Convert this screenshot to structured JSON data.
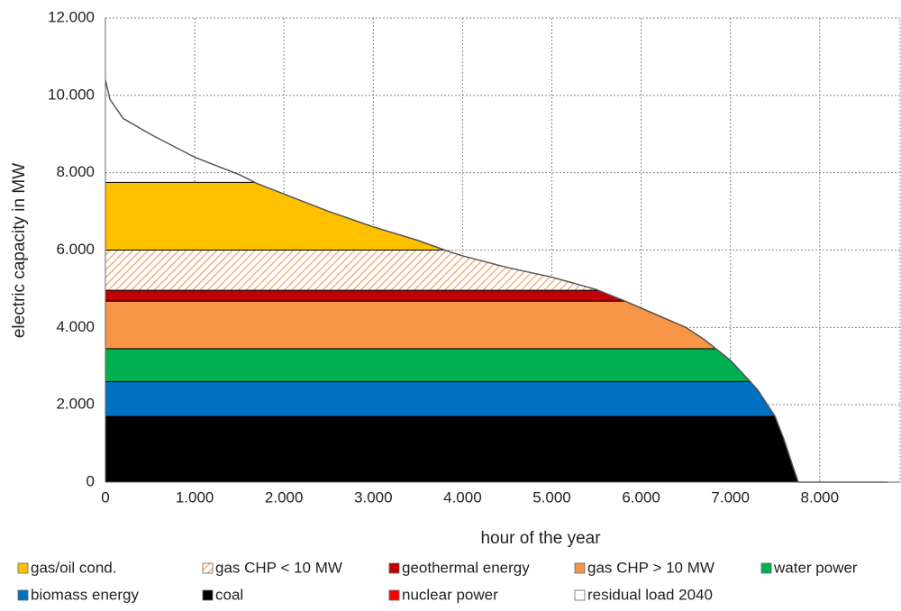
{
  "chart_data": {
    "type": "stacked-duration-area",
    "x_label": "hour of the year",
    "y_label": "electric capacity in MW",
    "xlim": [
      0,
      8900
    ],
    "ylim": [
      0,
      12000
    ],
    "xticks": [
      0,
      {
        "value": 1000,
        "label": "1.000"
      },
      {
        "value": 2000,
        "label": "2.000"
      },
      {
        "value": 3000,
        "label": "3.000"
      },
      {
        "value": 4000,
        "label": "4.000"
      },
      {
        "value": 5000,
        "label": "5.000"
      },
      {
        "value": 6000,
        "label": "6.000"
      },
      {
        "value": 7000,
        "label": "7.000"
      },
      {
        "value": 8000,
        "label": "8.000"
      }
    ],
    "yticks": [
      0,
      {
        "value": 2000,
        "label": "2.000"
      },
      {
        "value": 4000,
        "label": "4.000"
      },
      {
        "value": 6000,
        "label": "6.000"
      },
      {
        "value": 8000,
        "label": "8.000"
      },
      {
        "value": 10000,
        "label": "10.000"
      },
      {
        "value": 12000,
        "label": "12.000"
      }
    ],
    "grid": true,
    "series": [
      {
        "name": "gas/oil cond.",
        "color": "#ffc000",
        "value": 1750
      },
      {
        "name": "gas CHP < 10 MW",
        "color": "#f4b183",
        "pattern": "hatch",
        "value": 1040
      },
      {
        "name": "geothermal energy",
        "color": "#c00000",
        "value": 280
      },
      {
        "name": "gas CHP > 10 MW",
        "color": "#f79646",
        "value": 1230
      },
      {
        "name": "water power",
        "color": "#00b050",
        "value": 850
      },
      {
        "name": "biomass energy",
        "color": "#0070c0",
        "value": 900
      },
      {
        "name": "coal",
        "color": "#000000",
        "value": 1700
      },
      {
        "name": "nuclear power",
        "color": "#ff0000",
        "value": 0
      }
    ],
    "line": {
      "name": "residual load 2040",
      "color": "#555555",
      "x": [
        0,
        50,
        200,
        500,
        1000,
        1500,
        1700,
        2000,
        2500,
        3000,
        3500,
        3800,
        4000,
        4500,
        5000,
        5500,
        5800,
        6000,
        6500,
        6700,
        7000,
        7100,
        7300,
        7500,
        7600,
        7700,
        7760,
        8760
      ],
      "values": [
        10400,
        9900,
        9400,
        9000,
        8400,
        7950,
        7720,
        7450,
        7000,
        6600,
        6250,
        6000,
        5850,
        5550,
        5300,
        4980,
        4700,
        4500,
        4000,
        3700,
        3150,
        2900,
        2400,
        1700,
        1100,
        400,
        0,
        0
      ]
    }
  }
}
